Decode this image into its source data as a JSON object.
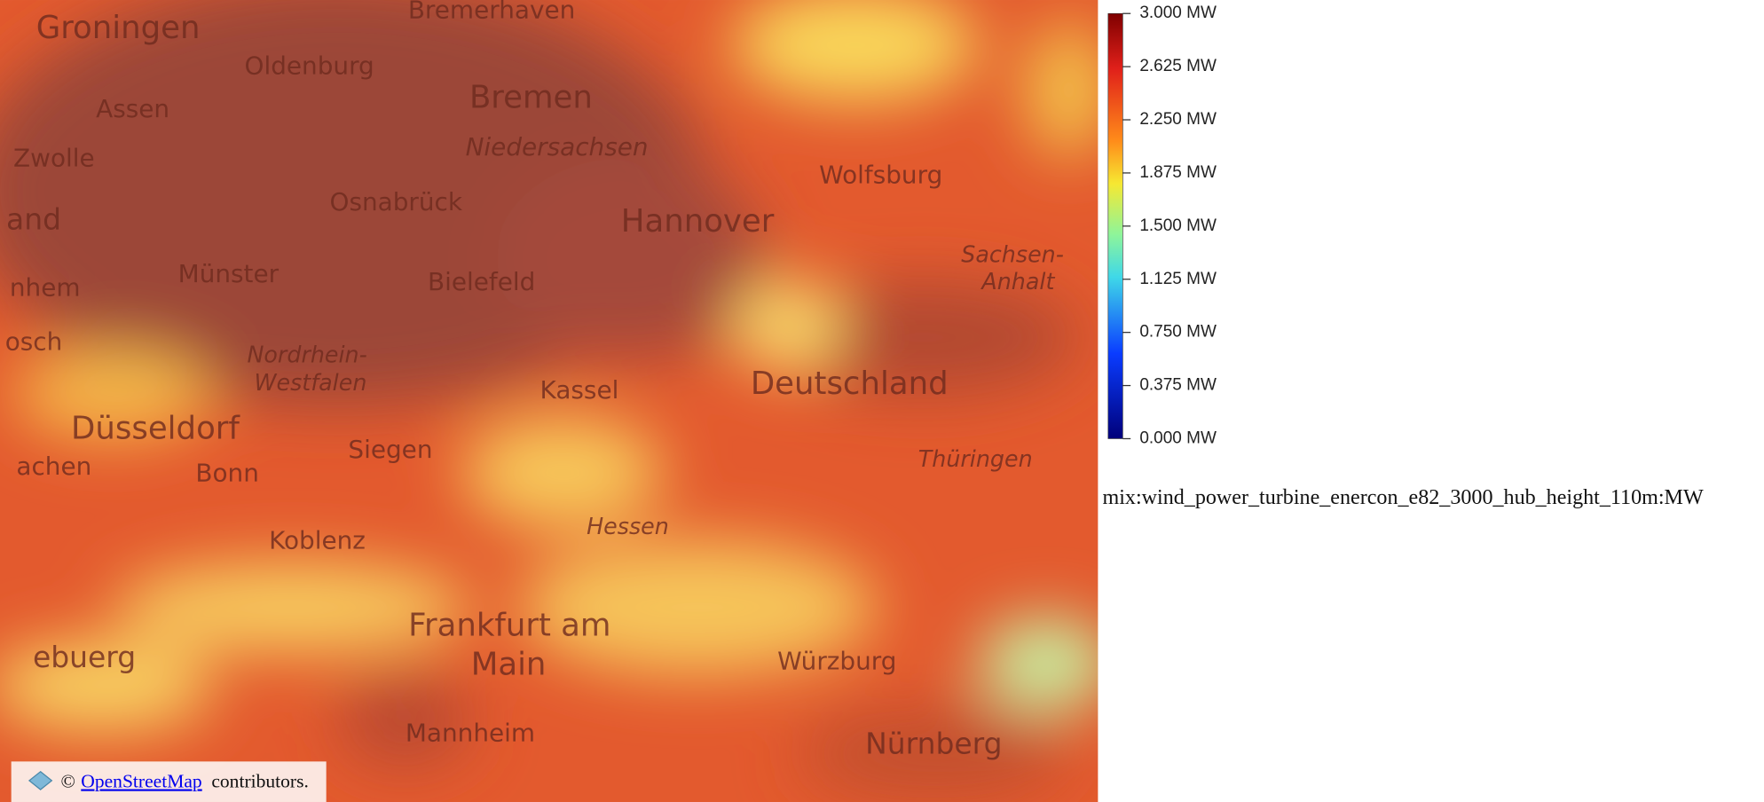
{
  "map": {
    "labels": [
      "Bremerhaven",
      "Groningen",
      "Oldenburg",
      "Assen",
      "Bremen",
      "Niedersachsen",
      "Zwolle",
      "Wolfsburg",
      "Osnabrück",
      "Hannover",
      "and",
      "Münster",
      "Bielefeld",
      "nhem",
      "Sachsen-",
      "Anhalt",
      "osch",
      "Nordrhein-",
      "Westfalen",
      "Kassel",
      "Deutschland",
      "Düsseldorf",
      "Siegen",
      "Thüringen",
      "achen",
      "Bonn",
      "Koblenz",
      "Hessen",
      "Frankfurt am",
      "Main",
      "ebuerg",
      "Würzburg",
      "Mannheim",
      "Nürnberg"
    ]
  },
  "legend": {
    "ticks": [
      "3.000 MW",
      "2.625 MW",
      "2.250 MW",
      "1.875 MW",
      "1.500 MW",
      "1.125 MW",
      "0.750 MW",
      "0.375 MW",
      "0.000 MW"
    ],
    "layer": "mix:wind_power_turbine_enercon_e82_3000_hub_height_110m:MW"
  },
  "attribution": {
    "prefix": "©",
    "link": "OpenStreetMap",
    "suffix": "contributors."
  }
}
